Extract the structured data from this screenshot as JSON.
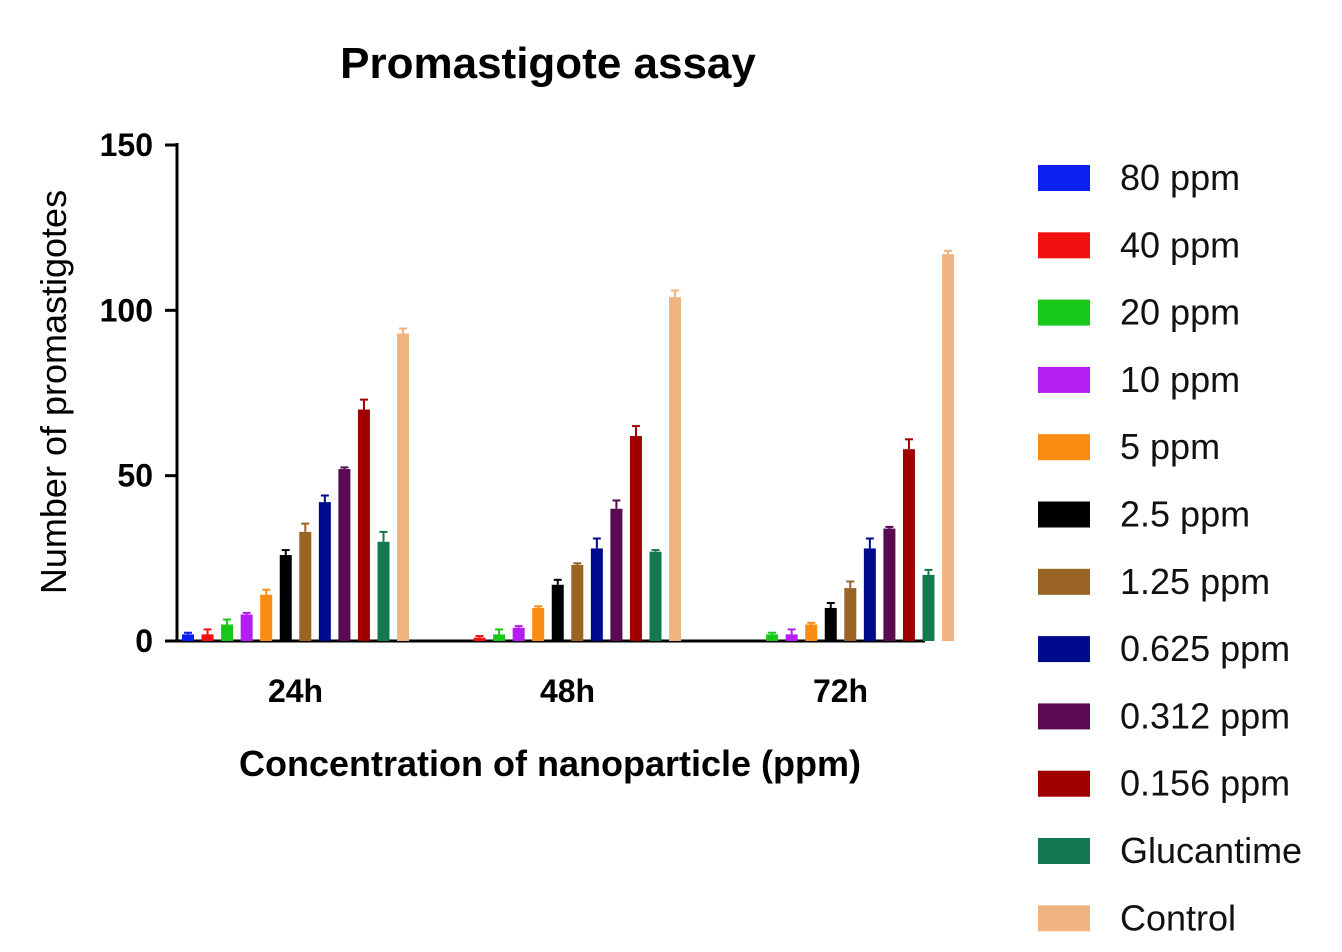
{
  "chart_data": {
    "type": "bar",
    "title": "Promastigote assay",
    "xlabel": "Concentration of nanoparticle (ppm)",
    "ylabel": "Number of promastigotes",
    "ylim": [
      0,
      150
    ],
    "yticks": [
      "0",
      "50",
      "100",
      "150"
    ],
    "categories": [
      "24h",
      "48h",
      "72h"
    ],
    "legend_position": "right",
    "grid": false,
    "series": [
      {
        "name": "80 ppm",
        "color": "#0a1ff0",
        "values": [
          2,
          0,
          0
        ],
        "errors": [
          0.5,
          0,
          0
        ]
      },
      {
        "name": "40 ppm",
        "color": "#f01010",
        "values": [
          2,
          1,
          0
        ],
        "errors": [
          1.5,
          0.5,
          0
        ]
      },
      {
        "name": "20 ppm",
        "color": "#18c818",
        "values": [
          5,
          2,
          2
        ],
        "errors": [
          1.5,
          1.5,
          0.5
        ]
      },
      {
        "name": "10 ppm",
        "color": "#b41ef0",
        "values": [
          8,
          4,
          2
        ],
        "errors": [
          0.5,
          0.5,
          1.5
        ]
      },
      {
        "name": "5 ppm",
        "color": "#fa8c14",
        "values": [
          14,
          10,
          5
        ],
        "errors": [
          1.5,
          0.5,
          0.5
        ]
      },
      {
        "name": "2.5 ppm",
        "color": "#000000",
        "values": [
          26,
          17,
          10
        ],
        "errors": [
          1.5,
          1.5,
          1.5
        ]
      },
      {
        "name": "1.25 ppm",
        "color": "#9a6424",
        "values": [
          33,
          23,
          16
        ],
        "errors": [
          2.5,
          0.5,
          2
        ]
      },
      {
        "name": "0.625 ppm",
        "color": "#000a8c",
        "values": [
          42,
          28,
          28
        ],
        "errors": [
          2,
          3,
          3
        ]
      },
      {
        "name": "0.312 ppm",
        "color": "#5a0a50",
        "values": [
          52,
          40,
          34
        ],
        "errors": [
          0.5,
          2.5,
          0.5
        ]
      },
      {
        "name": "0.156 ppm",
        "color": "#a00000",
        "values": [
          70,
          62,
          58
        ],
        "errors": [
          3,
          3,
          3
        ]
      },
      {
        "name": "Glucantime",
        "color": "#147850",
        "values": [
          30,
          27,
          20
        ],
        "errors": [
          3,
          0.5,
          1.5
        ]
      },
      {
        "name": "Control",
        "color": "#f0b482",
        "values": [
          93,
          104,
          117
        ],
        "errors": [
          1.5,
          2,
          1
        ]
      }
    ]
  }
}
